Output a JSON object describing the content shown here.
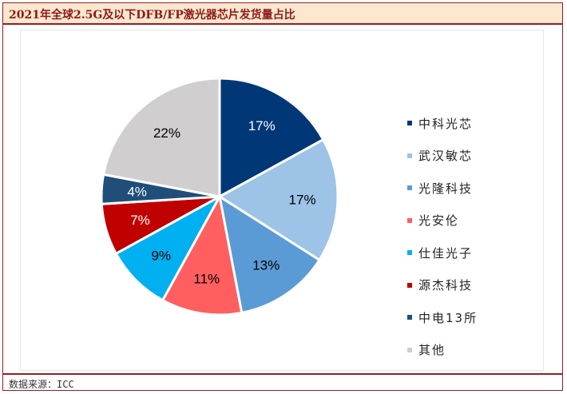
{
  "header": {
    "title": "2021年全球2.5G及以下DFB/FP激光器芯片发货量占比"
  },
  "footer": {
    "source": "数据来源：ICC"
  },
  "chart_data": {
    "type": "pie",
    "title": "2021年全球2.5G及以下DFB/FP激光器芯片发货量占比",
    "legend_position": "right",
    "start_angle_deg": 0,
    "direction": "clockwise",
    "slices": [
      {
        "name": "中科光芯",
        "value": 17,
        "label": "17%",
        "color": "#003777",
        "label_color": "#ffffff"
      },
      {
        "name": "武汉敏芯",
        "value": 17,
        "label": "17%",
        "color": "#9dc3e6",
        "label_color": "#000000"
      },
      {
        "name": "光隆科技",
        "value": 13,
        "label": "13%",
        "color": "#5b9bd5",
        "label_color": "#000000"
      },
      {
        "name": "光安伦",
        "value": 11,
        "label": "11%",
        "color": "#ff5f5f",
        "label_color": "#000000"
      },
      {
        "name": "仕佳光子",
        "value": 9,
        "label": "9%",
        "color": "#00b0f0",
        "label_color": "#000000"
      },
      {
        "name": "源杰科技",
        "value": 7,
        "label": "7%",
        "color": "#c00000",
        "label_color": "#ffffff"
      },
      {
        "name": "中电13所",
        "value": 4,
        "label": "4%",
        "color": "#1f4e79",
        "label_color": "#ffffff"
      },
      {
        "name": "其他",
        "value": 22,
        "label": "22%",
        "color": "#d0cece",
        "label_color": "#000000"
      }
    ]
  }
}
